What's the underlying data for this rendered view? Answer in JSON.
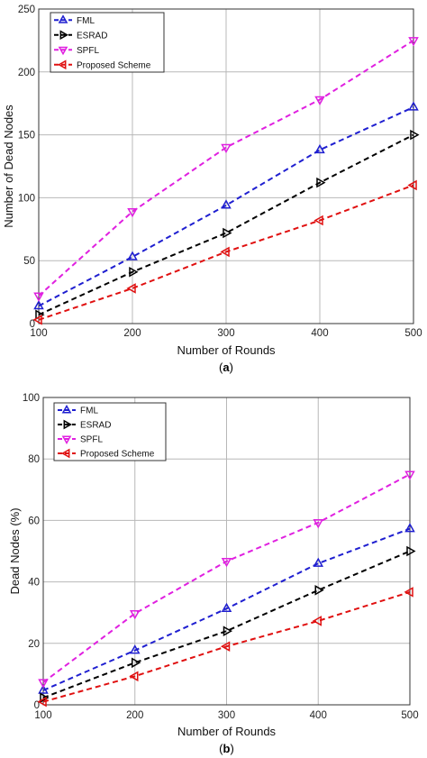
{
  "chart_data": [
    {
      "type": "line",
      "panel_label": "a",
      "xlabel": "Number of Rounds",
      "ylabel": "Number of Dead Nodes",
      "x": [
        100,
        200,
        300,
        400,
        500
      ],
      "xticks": [
        "100",
        "200",
        "300",
        "400",
        "500"
      ],
      "yticks": [
        "0",
        "50",
        "100",
        "150",
        "200",
        "250"
      ],
      "xlim": [
        100,
        500
      ],
      "ylim": [
        0,
        250
      ],
      "grid": true,
      "legend_position": "top-left",
      "series": [
        {
          "name": "FML",
          "values": [
            14,
            53,
            94,
            138,
            172
          ],
          "color": "#1f1fd0",
          "marker": "triangle-up"
        },
        {
          "name": "ESRAD",
          "values": [
            7,
            41,
            72,
            112,
            150
          ],
          "color": "#000000",
          "marker": "triangle-right"
        },
        {
          "name": "SPFL",
          "values": [
            22,
            89,
            140,
            178,
            225
          ],
          "color": "#e020e0",
          "marker": "triangle-down"
        },
        {
          "name": "Proposed Scheme",
          "values": [
            3,
            28,
            57,
            82,
            110
          ],
          "color": "#e01010",
          "marker": "triangle-left"
        }
      ]
    },
    {
      "type": "line",
      "panel_label": "b",
      "xlabel": "Number of Rounds",
      "ylabel": "Dead Nodes (%)",
      "x": [
        100,
        200,
        300,
        400,
        500
      ],
      "xticks": [
        "100",
        "200",
        "300",
        "400",
        "500"
      ],
      "yticks": [
        "0",
        "20",
        "40",
        "60",
        "80",
        "100"
      ],
      "xlim": [
        100,
        500
      ],
      "ylim": [
        0,
        100
      ],
      "grid": true,
      "legend_position": "top-left",
      "series": [
        {
          "name": "FML",
          "values": [
            4.7,
            17.7,
            31.3,
            46,
            57.3
          ],
          "color": "#1f1fd0",
          "marker": "triangle-up"
        },
        {
          "name": "ESRAD",
          "values": [
            2.3,
            13.7,
            24,
            37.3,
            50
          ],
          "color": "#000000",
          "marker": "triangle-right"
        },
        {
          "name": "SPFL",
          "values": [
            7.3,
            29.7,
            46.7,
            59.3,
            75
          ],
          "color": "#e020e0",
          "marker": "triangle-down"
        },
        {
          "name": "Proposed Scheme",
          "values": [
            1,
            9.3,
            19,
            27.3,
            36.7
          ],
          "color": "#e01010",
          "marker": "triangle-left"
        }
      ]
    }
  ]
}
